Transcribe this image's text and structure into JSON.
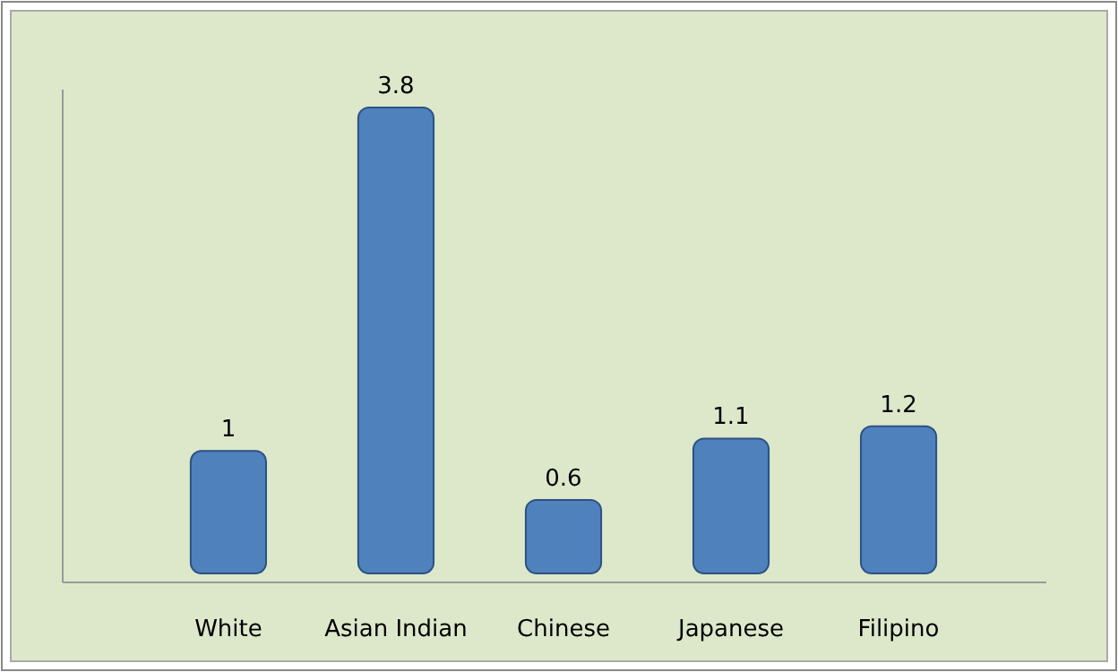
{
  "chart_data": {
    "type": "bar",
    "categories": [
      "White",
      "Asian Indian",
      "Chinese",
      "Japanese",
      "Filipino"
    ],
    "values": [
      1,
      3.8,
      0.6,
      1.1,
      1.2
    ],
    "color": "#4f81bd",
    "data_labels": true
  }
}
